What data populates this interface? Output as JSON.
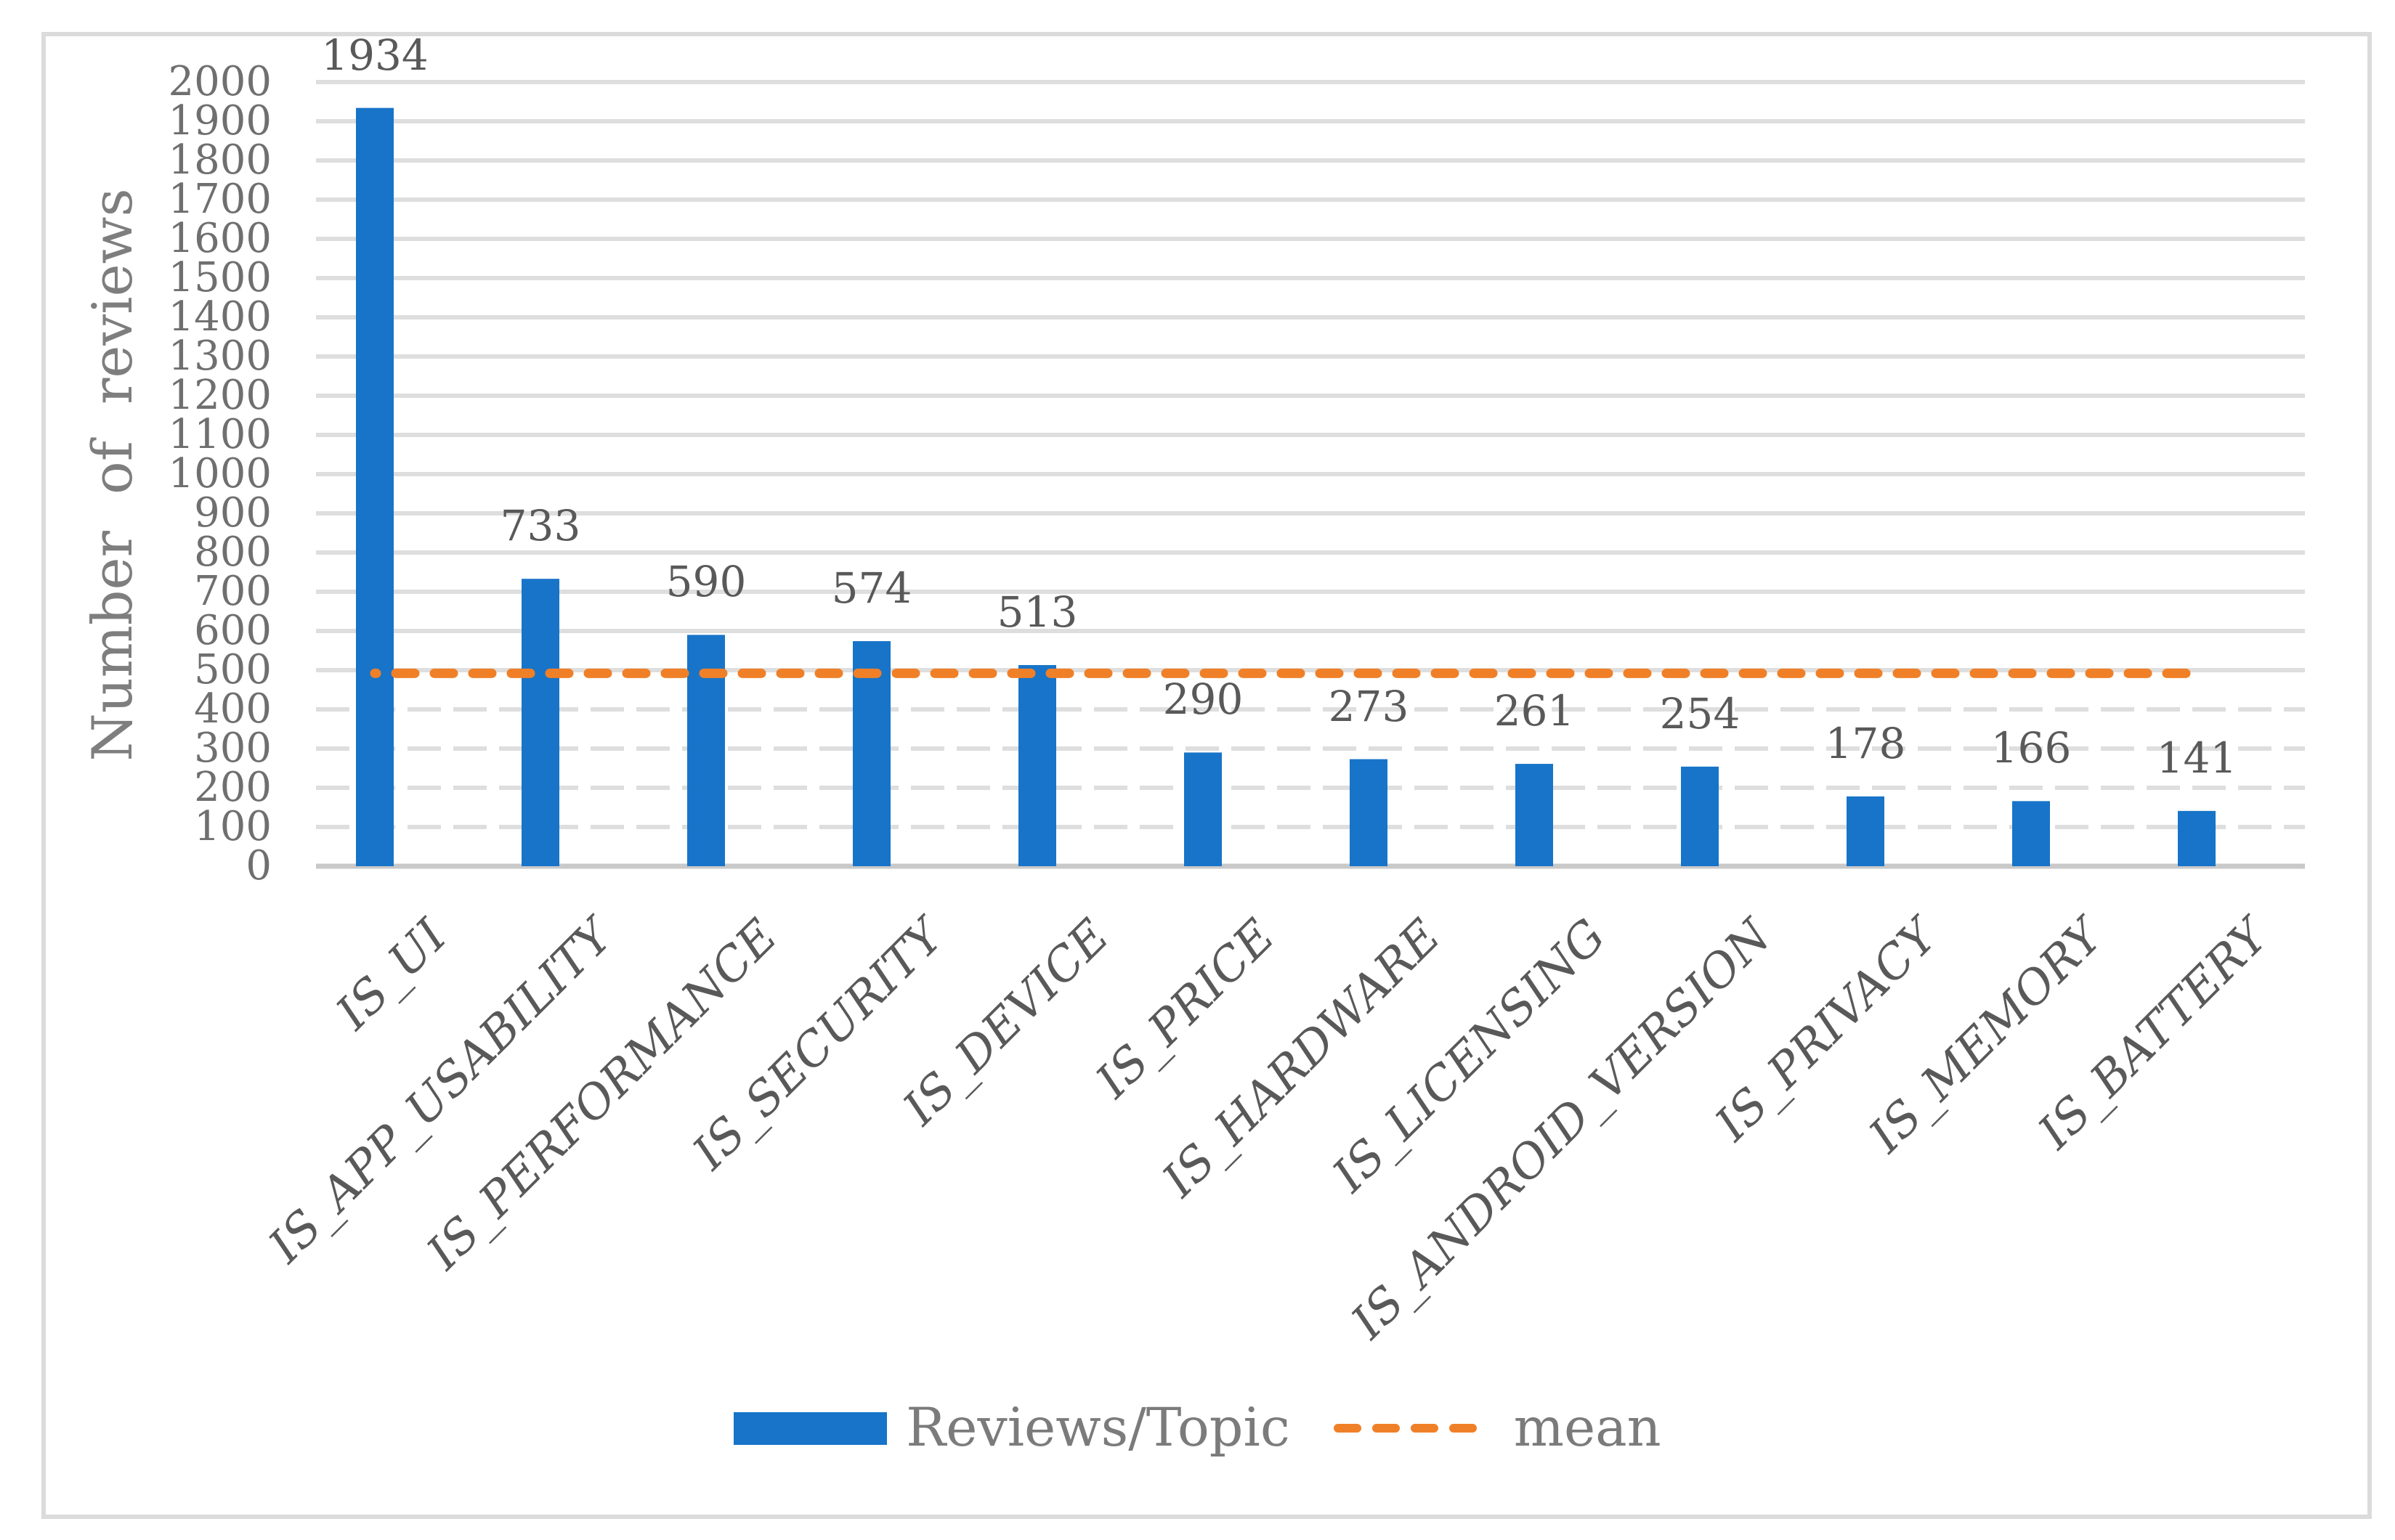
{
  "chart_data": {
    "type": "bar",
    "title": "",
    "xlabel": "",
    "ylabel": "Number of reviews",
    "ylim": [
      0,
      2000
    ],
    "ytick_step": 100,
    "grid": "horizontal",
    "legend_position": "bottom",
    "categories": [
      "IS_UI",
      "IS_APP_USABILITY",
      "IS_PERFORMANCE",
      "IS_SECURITY",
      "IS_DEVICE",
      "IS_PRICE",
      "IS_HARDWARE",
      "IS_LICENSING",
      "IS_ANDROID_VERSION",
      "IS_PRIVACY",
      "IS_MEMORY",
      "IS_BATTERY"
    ],
    "series": [
      {
        "name": "Reviews/Topic",
        "values": [
          1934,
          733,
          590,
          574,
          513,
          290,
          273,
          261,
          254,
          178,
          166,
          141
        ],
        "color": "#1774C8"
      }
    ],
    "mean_line": {
      "name": "mean",
      "value": 492,
      "color": "#F08028",
      "style": "dashed"
    },
    "colors": {
      "bar": "#1774C8",
      "mean": "#F08028",
      "gridline": "#DEDEDE",
      "axis_line": "#C9C9C9",
      "tick_text": "#6F6F6F",
      "value_text": "#595959",
      "category_text": "#595959",
      "axis_title_text": "#7E7E7E",
      "legend_text": "#7B7B7B",
      "frame_border": "#DBDBDB"
    }
  }
}
